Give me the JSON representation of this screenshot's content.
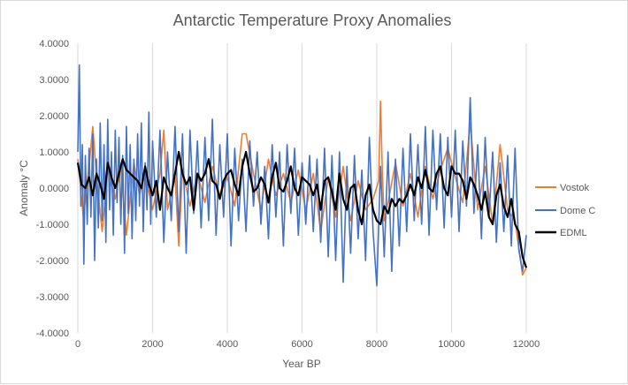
{
  "chart_data": {
    "type": "line",
    "title": "Antarctic Temperature Proxy Anomalies",
    "xlabel": "Year BP",
    "ylabel": "Anomaly °C",
    "xlim": [
      0,
      12000
    ],
    "ylim": [
      -4,
      4
    ],
    "x_ticks": [
      "0",
      "2000",
      "4000",
      "6000",
      "8000",
      "10000",
      "12000"
    ],
    "y_ticks": [
      "4.0000",
      "3.0000",
      "2.0000",
      "1.0000",
      "0.0000",
      "-1.0000",
      "-2.0000",
      "-3.0000",
      "-4.0000"
    ],
    "grid": "vertical",
    "legend_position": "right",
    "series": [
      {
        "name": "Vostok",
        "color": "#ed7d31",
        "x": [
          0,
          150,
          300,
          400,
          500,
          650,
          800,
          1000,
          1150,
          1300,
          1500,
          1650,
          1800,
          2000,
          2200,
          2300,
          2400,
          2600,
          2700,
          2800,
          3000,
          3200,
          3400,
          3600,
          3800,
          4000,
          4200,
          4400,
          4500,
          4700,
          4900,
          5100,
          5300,
          5500,
          5700,
          5900,
          6100,
          6300,
          6500,
          6700,
          6900,
          7100,
          7300,
          7500,
          7700,
          7900,
          8050,
          8100,
          8150,
          8200,
          8300,
          8500,
          8700,
          8900,
          9100,
          9300,
          9500,
          9700,
          9900,
          10100,
          10300,
          10500,
          10700,
          10900,
          11100,
          11300,
          11500,
          11700,
          11900,
          12000
        ],
        "values": [
          0.8,
          -0.8,
          0.6,
          1.7,
          0.3,
          -1.2,
          0.5,
          -0.3,
          0.6,
          -1.3,
          0.7,
          -0.2,
          0.4,
          -0.6,
          0.4,
          1.6,
          -0.6,
          0.3,
          -1.6,
          0.5,
          -0.5,
          0.4,
          -0.4,
          0.6,
          -0.2,
          0.3,
          -0.5,
          1.5,
          1.5,
          0.4,
          -0.6,
          0.8,
          -0.2,
          0.4,
          -0.4,
          0.5,
          -0.6,
          0.4,
          -1.2,
          0.3,
          -0.8,
          0.6,
          -0.9,
          0.2,
          -0.6,
          -0.3,
          0.2,
          2.4,
          0.4,
          -0.9,
          -0.4,
          0.7,
          -0.5,
          0.4,
          -0.8,
          0.6,
          -0.3,
          0.5,
          1.1,
          0.3,
          -0.4,
          1.8,
          -0.6,
          0.6,
          -1.0,
          1.2,
          -0.6,
          -0.9,
          -2.4,
          -2.2
        ]
      },
      {
        "name": "Dome C",
        "color": "#4472c4",
        "x": [
          0,
          40,
          80,
          120,
          160,
          200,
          250,
          300,
          350,
          400,
          450,
          500,
          550,
          600,
          650,
          700,
          750,
          800,
          850,
          900,
          950,
          1000,
          1050,
          1100,
          1150,
          1200,
          1250,
          1300,
          1350,
          1400,
          1450,
          1500,
          1550,
          1600,
          1650,
          1700,
          1750,
          1800,
          1850,
          1900,
          1950,
          2000,
          2100,
          2200,
          2300,
          2400,
          2500,
          2600,
          2700,
          2800,
          2900,
          3000,
          3100,
          3200,
          3300,
          3400,
          3500,
          3600,
          3700,
          3800,
          3900,
          4000,
          4100,
          4200,
          4300,
          4400,
          4500,
          4600,
          4700,
          4800,
          4900,
          5000,
          5100,
          5200,
          5300,
          5400,
          5500,
          5600,
          5700,
          5800,
          5900,
          6000,
          6100,
          6200,
          6300,
          6400,
          6500,
          6600,
          6700,
          6800,
          6900,
          7000,
          7100,
          7200,
          7300,
          7400,
          7500,
          7600,
          7700,
          7800,
          7900,
          8000,
          8100,
          8200,
          8300,
          8400,
          8500,
          8600,
          8700,
          8800,
          8900,
          9000,
          9100,
          9200,
          9300,
          9400,
          9500,
          9600,
          9700,
          9800,
          9900,
          10000,
          10100,
          10200,
          10300,
          10400,
          10500,
          10600,
          10700,
          10800,
          10900,
          11000,
          11100,
          11200,
          11300,
          11400,
          11500,
          11600,
          11700,
          11800,
          11900,
          12000
        ],
        "values": [
          1.0,
          3.4,
          -0.5,
          1.2,
          -2.1,
          0.9,
          -1.0,
          1.1,
          -0.8,
          1.5,
          -2.0,
          0.8,
          -1.1,
          1.8,
          -0.9,
          1.2,
          -1.5,
          1.9,
          -0.6,
          1.0,
          -1.3,
          1.6,
          -0.4,
          1.4,
          -1.0,
          0.9,
          -1.8,
          1.7,
          -0.7,
          1.2,
          -1.4,
          0.8,
          -0.9,
          1.5,
          -0.5,
          1.8,
          -1.2,
          0.7,
          -0.6,
          2.1,
          -1.0,
          1.3,
          -0.8,
          1.6,
          -1.5,
          1.0,
          -0.9,
          1.7,
          -1.2,
          1.5,
          -1.8,
          1.6,
          -0.7,
          1.3,
          -1.1,
          1.4,
          -0.9,
          1.9,
          -1.3,
          1.2,
          -0.8,
          1.5,
          -1.6,
          1.1,
          -0.9,
          0.8,
          -1.2,
          1.3,
          -0.5,
          1.0,
          -1.0,
          0.6,
          -1.4,
          1.2,
          -0.8,
          1.0,
          -1.6,
          1.2,
          -0.7,
          1.1,
          -1.3,
          0.7,
          -1.0,
          0.9,
          -1.2,
          0.8,
          -1.5,
          1.1,
          -1.9,
          0.9,
          -2.0,
          1.0,
          -2.6,
          0.6,
          -1.8,
          0.9,
          -1.4,
          0.5,
          -2.0,
          1.4,
          -1.2,
          -2.7,
          0.6,
          -1.9,
          1.0,
          -2.3,
          0.8,
          -1.6,
          1.1,
          -1.2,
          1.5,
          -0.9,
          1.2,
          -1.0,
          1.7,
          -1.3,
          1.6,
          -0.6,
          1.5,
          -1.1,
          1.4,
          -0.8,
          1.6,
          -1.2,
          1.3,
          -0.5,
          2.5,
          -0.7,
          1.2,
          -1.4,
          1.4,
          -0.8,
          1.0,
          -1.5,
          0.7,
          -1.2,
          0.9,
          -1.6,
          1.1,
          -1.7,
          -2.3,
          -1.3
        ]
      },
      {
        "name": "EDML",
        "color": "#000000",
        "x": [
          0,
          100,
          200,
          300,
          400,
          500,
          600,
          700,
          800,
          900,
          1000,
          1100,
          1200,
          1300,
          1400,
          1500,
          1600,
          1700,
          1800,
          1900,
          2000,
          2100,
          2200,
          2300,
          2400,
          2500,
          2600,
          2700,
          2800,
          2900,
          3000,
          3100,
          3200,
          3300,
          3400,
          3500,
          3600,
          3700,
          3800,
          3900,
          4000,
          4100,
          4200,
          4300,
          4400,
          4500,
          4600,
          4700,
          4800,
          4900,
          5000,
          5100,
          5200,
          5300,
          5400,
          5500,
          5600,
          5700,
          5800,
          5900,
          6000,
          6100,
          6200,
          6300,
          6400,
          6500,
          6600,
          6700,
          6800,
          6900,
          7000,
          7100,
          7200,
          7300,
          7400,
          7500,
          7600,
          7700,
          7800,
          7900,
          8000,
          8100,
          8200,
          8300,
          8400,
          8500,
          8600,
          8700,
          8800,
          8900,
          9000,
          9100,
          9200,
          9300,
          9400,
          9500,
          9600,
          9700,
          9800,
          9900,
          10000,
          10100,
          10200,
          10300,
          10400,
          10500,
          10600,
          10700,
          10800,
          10900,
          11000,
          11100,
          11200,
          11300,
          11400,
          11500,
          11600,
          11700,
          11800,
          11900,
          12000
        ],
        "values": [
          0.7,
          0.1,
          0.0,
          0.3,
          -0.2,
          0.4,
          0.1,
          -0.3,
          0.7,
          0.3,
          0.0,
          0.4,
          0.8,
          0.5,
          0.4,
          0.3,
          0.2,
          0.0,
          0.6,
          0.1,
          -0.2,
          0.2,
          -0.6,
          0.3,
          0.0,
          -0.2,
          0.4,
          1.0,
          0.4,
          0.1,
          0.3,
          -0.6,
          0.4,
          0.2,
          0.4,
          0.8,
          0.2,
          0.1,
          -0.3,
          0.2,
          0.4,
          0.5,
          0.1,
          -0.2,
          0.6,
          1.0,
          0.4,
          -0.1,
          0.0,
          0.3,
          0.1,
          -0.4,
          0.3,
          0.7,
          0.0,
          -0.1,
          0.2,
          0.6,
          0.0,
          -0.2,
          0.3,
          0.2,
          0.1,
          -0.2,
          0.1,
          -0.6,
          0.2,
          0.3,
          -0.1,
          -0.6,
          0.4,
          -0.3,
          -0.6,
          0.0,
          0.1,
          -0.6,
          -1.0,
          -0.2,
          0.1,
          -0.6,
          -0.9,
          -1.0,
          -0.5,
          -0.7,
          -0.3,
          -0.5,
          -0.3,
          -0.4,
          -0.2,
          0.1,
          -0.2,
          0.3,
          0.0,
          0.5,
          0.0,
          -0.1,
          0.4,
          0.6,
          0.0,
          -0.2,
          0.6,
          0.4,
          0.4,
          0.2,
          -0.3,
          0.3,
          0.1,
          -0.2,
          -0.6,
          -0.1,
          -0.8,
          -1.0,
          -0.2,
          0.1,
          -0.5,
          -0.8,
          -0.3,
          -1.0,
          -1.2,
          -1.9,
          -2.2
        ]
      }
    ]
  }
}
